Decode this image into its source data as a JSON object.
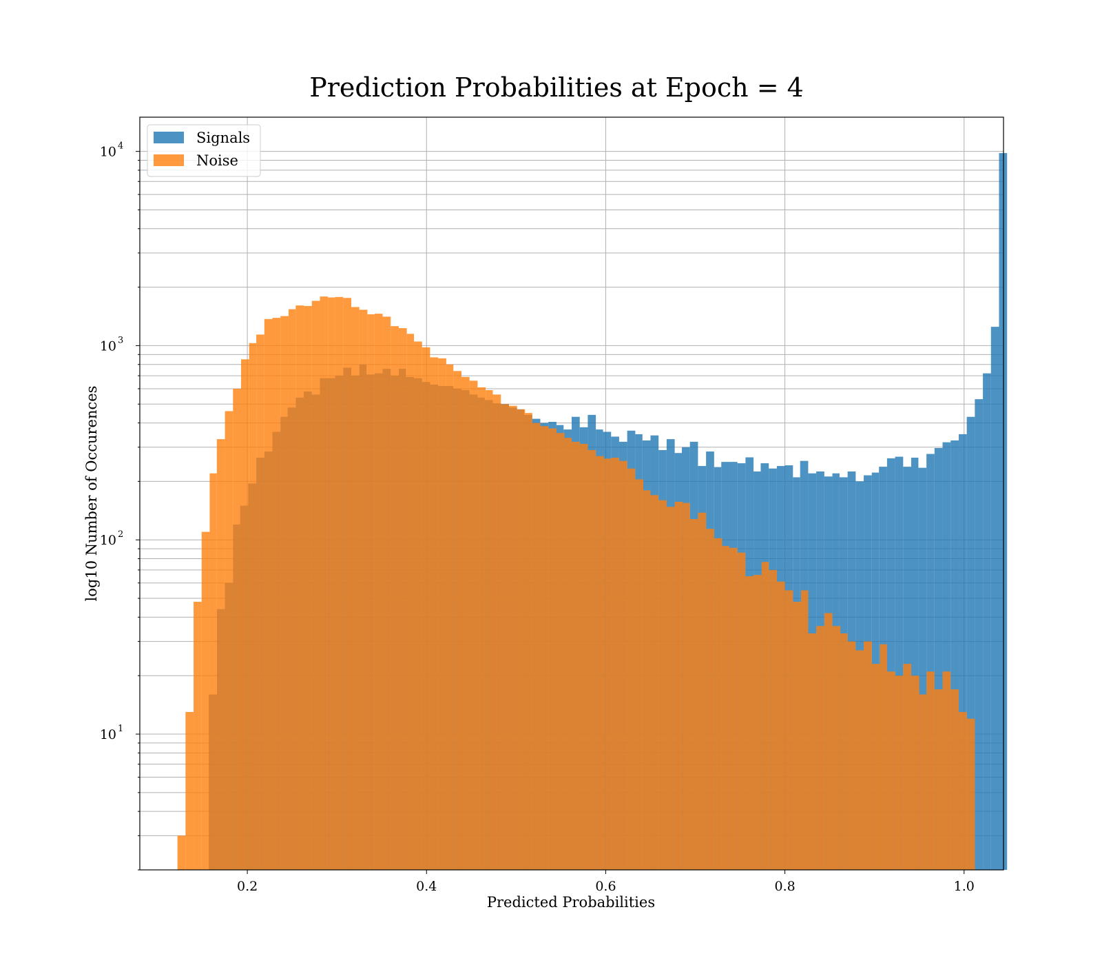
{
  "chart_data": {
    "type": "histogram",
    "title": "Prediction Probabilities at Epoch = 4",
    "xlabel": "Predicted Probabilities",
    "ylabel": "log10 Number of Occurences",
    "xscale": "linear",
    "yscale": "log",
    "xlim": [
      0.08,
      1.044
    ],
    "ylim": [
      2,
      15000
    ],
    "xticks": [
      0.2,
      0.4,
      0.6,
      0.8,
      1.0
    ],
    "xtick_labels": [
      "0.2",
      "0.4",
      "0.6",
      "0.8",
      "1.0"
    ],
    "yticks": [
      {
        "base": "10",
        "exp": "1",
        "value": 10
      },
      {
        "base": "10",
        "exp": "2",
        "value": 100
      },
      {
        "base": "10",
        "exp": "3",
        "value": 1000
      },
      {
        "base": "10",
        "exp": "4",
        "value": 10000
      }
    ],
    "grid": true,
    "legend_position": "top-left",
    "series": [
      {
        "name": "Signals",
        "color": "#1f77b4",
        "alpha": 0.8,
        "bins": [
          [
            0.157,
            0.166,
            16
          ],
          [
            0.166,
            0.175,
            44
          ],
          [
            0.175,
            0.184,
            60
          ],
          [
            0.184,
            0.192,
            120
          ],
          [
            0.192,
            0.201,
            150
          ],
          [
            0.201,
            0.21,
            195
          ],
          [
            0.21,
            0.219,
            265
          ],
          [
            0.219,
            0.228,
            285
          ],
          [
            0.228,
            0.237,
            360
          ],
          [
            0.237,
            0.245,
            430
          ],
          [
            0.245,
            0.254,
            480
          ],
          [
            0.254,
            0.263,
            540
          ],
          [
            0.263,
            0.272,
            580
          ],
          [
            0.272,
            0.281,
            560
          ],
          [
            0.281,
            0.289,
            680
          ],
          [
            0.289,
            0.298,
            680
          ],
          [
            0.298,
            0.307,
            700
          ],
          [
            0.307,
            0.316,
            770
          ],
          [
            0.316,
            0.325,
            700
          ],
          [
            0.325,
            0.333,
            800
          ],
          [
            0.333,
            0.342,
            710
          ],
          [
            0.342,
            0.351,
            720
          ],
          [
            0.351,
            0.36,
            760
          ],
          [
            0.36,
            0.369,
            700
          ],
          [
            0.369,
            0.377,
            760
          ],
          [
            0.377,
            0.386,
            690
          ],
          [
            0.386,
            0.395,
            680
          ],
          [
            0.395,
            0.404,
            650
          ],
          [
            0.404,
            0.413,
            630
          ],
          [
            0.413,
            0.421,
            620
          ],
          [
            0.421,
            0.43,
            620
          ],
          [
            0.43,
            0.439,
            600
          ],
          [
            0.439,
            0.448,
            590
          ],
          [
            0.448,
            0.457,
            560
          ],
          [
            0.457,
            0.465,
            540
          ],
          [
            0.465,
            0.474,
            525
          ],
          [
            0.474,
            0.483,
            505
          ],
          [
            0.483,
            0.492,
            500
          ],
          [
            0.492,
            0.501,
            480
          ],
          [
            0.501,
            0.509,
            470
          ],
          [
            0.509,
            0.518,
            440
          ],
          [
            0.518,
            0.527,
            420
          ],
          [
            0.527,
            0.536,
            400
          ],
          [
            0.536,
            0.545,
            405
          ],
          [
            0.545,
            0.553,
            390
          ],
          [
            0.553,
            0.562,
            370
          ],
          [
            0.562,
            0.571,
            430
          ],
          [
            0.571,
            0.58,
            380
          ],
          [
            0.58,
            0.589,
            440
          ],
          [
            0.589,
            0.597,
            370
          ],
          [
            0.597,
            0.606,
            360
          ],
          [
            0.606,
            0.615,
            340
          ],
          [
            0.615,
            0.624,
            320
          ],
          [
            0.624,
            0.633,
            365
          ],
          [
            0.633,
            0.641,
            350
          ],
          [
            0.641,
            0.65,
            325
          ],
          [
            0.65,
            0.659,
            345
          ],
          [
            0.659,
            0.668,
            290
          ],
          [
            0.668,
            0.677,
            330
          ],
          [
            0.677,
            0.685,
            280
          ],
          [
            0.685,
            0.694,
            300
          ],
          [
            0.694,
            0.703,
            320
          ],
          [
            0.703,
            0.712,
            240
          ],
          [
            0.712,
            0.721,
            285
          ],
          [
            0.721,
            0.729,
            237
          ],
          [
            0.729,
            0.738,
            252
          ],
          [
            0.738,
            0.747,
            252
          ],
          [
            0.747,
            0.756,
            248
          ],
          [
            0.756,
            0.765,
            266
          ],
          [
            0.765,
            0.773,
            225
          ],
          [
            0.773,
            0.782,
            248
          ],
          [
            0.782,
            0.791,
            233
          ],
          [
            0.791,
            0.8,
            240
          ],
          [
            0.8,
            0.809,
            242
          ],
          [
            0.809,
            0.817,
            210
          ],
          [
            0.817,
            0.826,
            255
          ],
          [
            0.826,
            0.835,
            220
          ],
          [
            0.835,
            0.844,
            225
          ],
          [
            0.844,
            0.853,
            212
          ],
          [
            0.853,
            0.861,
            220
          ],
          [
            0.861,
            0.87,
            210
          ],
          [
            0.87,
            0.879,
            225
          ],
          [
            0.879,
            0.888,
            200
          ],
          [
            0.888,
            0.897,
            215
          ],
          [
            0.897,
            0.905,
            222
          ],
          [
            0.905,
            0.914,
            238
          ],
          [
            0.914,
            0.923,
            263
          ],
          [
            0.923,
            0.932,
            268
          ],
          [
            0.932,
            0.941,
            238
          ],
          [
            0.941,
            0.949,
            265
          ],
          [
            0.949,
            0.958,
            235
          ],
          [
            0.958,
            0.967,
            277
          ],
          [
            0.967,
            0.976,
            297
          ],
          [
            0.976,
            0.985,
            318
          ],
          [
            0.985,
            0.994,
            325
          ],
          [
            0.994,
            1.003,
            350
          ],
          [
            1.003,
            1.012,
            430
          ],
          [
            1.012,
            1.021,
            530
          ],
          [
            1.021,
            1.03,
            720
          ],
          [
            1.03,
            1.039,
            1250
          ],
          [
            1.039,
            1.048,
            9800
          ]
        ]
      },
      {
        "name": "Noise",
        "color": "#ff7f0e",
        "alpha": 0.8,
        "bins": [
          [
            0.122,
            0.131,
            3
          ],
          [
            0.131,
            0.14,
            13
          ],
          [
            0.14,
            0.149,
            48
          ],
          [
            0.149,
            0.158,
            110
          ],
          [
            0.158,
            0.166,
            220
          ],
          [
            0.166,
            0.175,
            330
          ],
          [
            0.175,
            0.184,
            460
          ],
          [
            0.184,
            0.193,
            600
          ],
          [
            0.193,
            0.202,
            850
          ],
          [
            0.202,
            0.21,
            1030
          ],
          [
            0.21,
            0.219,
            1140
          ],
          [
            0.219,
            0.228,
            1370
          ],
          [
            0.228,
            0.237,
            1390
          ],
          [
            0.237,
            0.246,
            1420
          ],
          [
            0.246,
            0.254,
            1540
          ],
          [
            0.254,
            0.263,
            1610
          ],
          [
            0.263,
            0.272,
            1600
          ],
          [
            0.272,
            0.281,
            1700
          ],
          [
            0.281,
            0.29,
            1790
          ],
          [
            0.29,
            0.298,
            1770
          ],
          [
            0.298,
            0.307,
            1780
          ],
          [
            0.307,
            0.316,
            1760
          ],
          [
            0.316,
            0.325,
            1580
          ],
          [
            0.325,
            0.334,
            1530
          ],
          [
            0.334,
            0.342,
            1450
          ],
          [
            0.342,
            0.351,
            1460
          ],
          [
            0.351,
            0.36,
            1410
          ],
          [
            0.36,
            0.369,
            1260
          ],
          [
            0.369,
            0.378,
            1230
          ],
          [
            0.378,
            0.386,
            1150
          ],
          [
            0.386,
            0.395,
            1050
          ],
          [
            0.395,
            0.404,
            980
          ],
          [
            0.404,
            0.413,
            870
          ],
          [
            0.413,
            0.422,
            860
          ],
          [
            0.422,
            0.43,
            800
          ],
          [
            0.43,
            0.439,
            740
          ],
          [
            0.439,
            0.448,
            690
          ],
          [
            0.448,
            0.457,
            660
          ],
          [
            0.457,
            0.466,
            610
          ],
          [
            0.466,
            0.474,
            590
          ],
          [
            0.474,
            0.483,
            560
          ],
          [
            0.483,
            0.492,
            500
          ],
          [
            0.492,
            0.501,
            490
          ],
          [
            0.501,
            0.51,
            470
          ],
          [
            0.51,
            0.518,
            450
          ],
          [
            0.518,
            0.527,
            400
          ],
          [
            0.527,
            0.536,
            385
          ],
          [
            0.536,
            0.545,
            375
          ],
          [
            0.545,
            0.554,
            355
          ],
          [
            0.554,
            0.562,
            335
          ],
          [
            0.562,
            0.571,
            320
          ],
          [
            0.571,
            0.58,
            312
          ],
          [
            0.58,
            0.589,
            290
          ],
          [
            0.589,
            0.598,
            270
          ],
          [
            0.598,
            0.606,
            262
          ],
          [
            0.606,
            0.615,
            265
          ],
          [
            0.615,
            0.624,
            255
          ],
          [
            0.624,
            0.633,
            233
          ],
          [
            0.633,
            0.642,
            205
          ],
          [
            0.642,
            0.65,
            180
          ],
          [
            0.65,
            0.659,
            170
          ],
          [
            0.659,
            0.668,
            160
          ],
          [
            0.668,
            0.677,
            148
          ],
          [
            0.677,
            0.686,
            157
          ],
          [
            0.686,
            0.694,
            155
          ],
          [
            0.694,
            0.703,
            128
          ],
          [
            0.703,
            0.712,
            138
          ],
          [
            0.712,
            0.721,
            114
          ],
          [
            0.721,
            0.73,
            102
          ],
          [
            0.73,
            0.738,
            93
          ],
          [
            0.738,
            0.747,
            91
          ],
          [
            0.747,
            0.756,
            86
          ],
          [
            0.756,
            0.765,
            65
          ],
          [
            0.765,
            0.774,
            66
          ],
          [
            0.774,
            0.782,
            77
          ],
          [
            0.782,
            0.791,
            70
          ],
          [
            0.791,
            0.8,
            61
          ],
          [
            0.8,
            0.809,
            55
          ],
          [
            0.809,
            0.818,
            48
          ],
          [
            0.818,
            0.826,
            55
          ],
          [
            0.826,
            0.835,
            33
          ],
          [
            0.835,
            0.844,
            36
          ],
          [
            0.844,
            0.853,
            42
          ],
          [
            0.853,
            0.862,
            36
          ],
          [
            0.862,
            0.87,
            33
          ],
          [
            0.87,
            0.879,
            30
          ],
          [
            0.879,
            0.888,
            27
          ],
          [
            0.888,
            0.897,
            30
          ],
          [
            0.897,
            0.906,
            23
          ],
          [
            0.906,
            0.914,
            29
          ],
          [
            0.914,
            0.923,
            21
          ],
          [
            0.923,
            0.932,
            20
          ],
          [
            0.932,
            0.941,
            23
          ],
          [
            0.941,
            0.95,
            20
          ],
          [
            0.95,
            0.958,
            16
          ],
          [
            0.958,
            0.967,
            21
          ],
          [
            0.967,
            0.976,
            17
          ],
          [
            0.976,
            0.985,
            21
          ],
          [
            0.985,
            0.994,
            17
          ],
          [
            0.994,
            1.003,
            13
          ],
          [
            1.003,
            1.012,
            12
          ]
        ]
      }
    ]
  }
}
